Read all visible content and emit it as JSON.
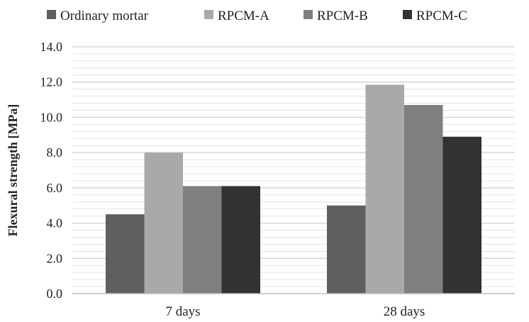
{
  "chart_data": {
    "type": "bar",
    "title": "",
    "xlabel": "",
    "ylabel": "Flexural  strength [MPa]",
    "categories": [
      "7 days",
      "28 days"
    ],
    "series": [
      {
        "name": "Ordinary mortar",
        "values": [
          4.5,
          5.0
        ],
        "color": "#5f5f61"
      },
      {
        "name": "RPCM-A",
        "values": [
          8.0,
          11.85
        ],
        "color": "#a8a9ab"
      },
      {
        "name": "RPCM-B",
        "values": [
          6.1,
          10.7
        ],
        "color": "#7e7f81"
      },
      {
        "name": "RPCM-C",
        "values": [
          6.1,
          8.9
        ],
        "color": "#323232"
      }
    ],
    "ylim": [
      0,
      14
    ],
    "y_ticks": [
      "0.0",
      "2.0",
      "4.0",
      "6.0",
      "8.0",
      "10.0",
      "12.0",
      "14.0"
    ],
    "minor_grid_step": 0.4,
    "grid": true,
    "legend_position": "top"
  }
}
